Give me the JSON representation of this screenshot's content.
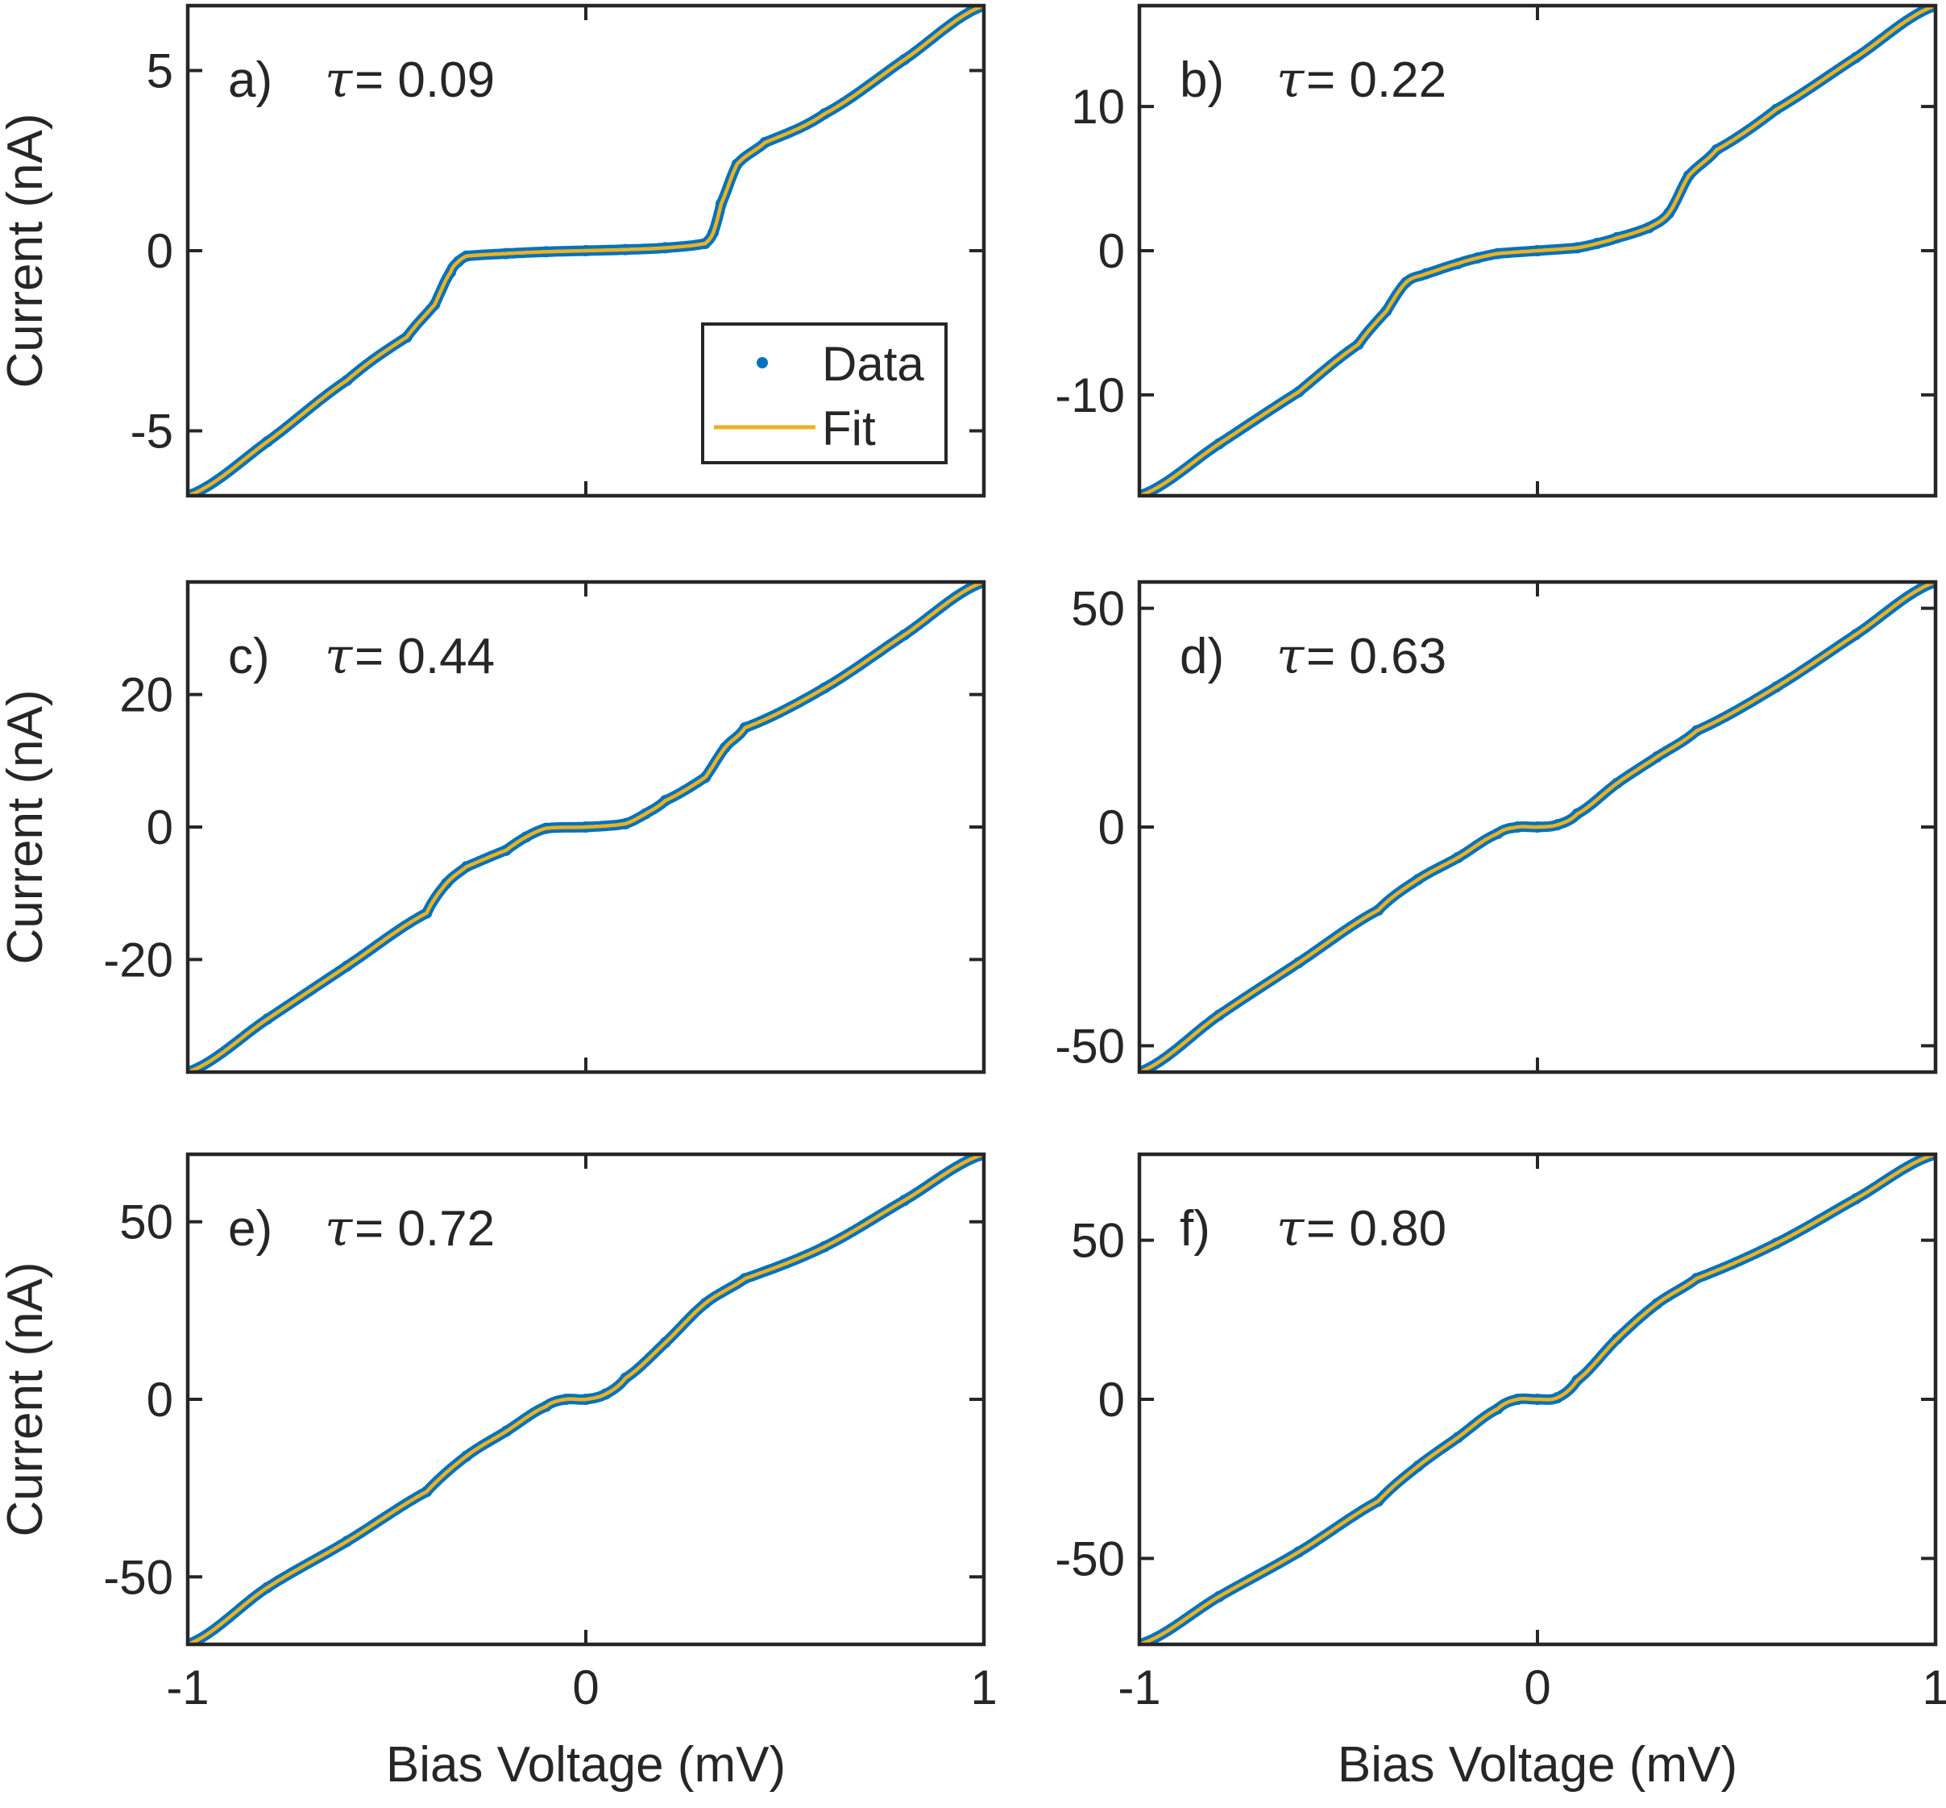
{
  "figure": {
    "legend_entries": [
      "Data",
      "Fit"
    ],
    "colors": {
      "data": "#0072BD",
      "fit": "#EDB120",
      "axes": "#262626"
    }
  },
  "chart_data": [
    {
      "type": "line",
      "panel": "a)",
      "tau_symbol": "τ",
      "tau_text": " = 0.09",
      "xlabel": "",
      "ylabel": "Current (nA)",
      "xlim": [
        -1,
        1
      ],
      "ylim": [
        -6.8,
        6.8
      ],
      "xticks": [
        -1,
        0,
        1
      ],
      "xtick_labels": [],
      "yticks": [
        -5,
        0,
        5
      ],
      "ytick_labels": [
        "-5",
        "0",
        "5"
      ],
      "legend": "bottom-right",
      "series": [
        {
          "name": "Data",
          "style": "dots",
          "x": [
            -1,
            -0.8,
            -0.6,
            -0.45,
            -0.38,
            -0.34,
            -0.32,
            -0.3,
            -0.2,
            -0.1,
            0,
            0.1,
            0.2,
            0.3,
            0.32,
            0.34,
            0.38,
            0.45,
            0.6,
            0.8,
            1
          ],
          "y": [
            -6.8,
            -5.3,
            -3.6,
            -2.4,
            -1.5,
            -0.6,
            -0.3,
            -0.15,
            -0.08,
            -0.03,
            0,
            0.03,
            0.08,
            0.2,
            0.5,
            1.3,
            2.4,
            3.0,
            3.8,
            5.3,
            6.8
          ]
        },
        {
          "name": "Fit",
          "style": "line",
          "x": [
            -1,
            -0.8,
            -0.6,
            -0.45,
            -0.38,
            -0.34,
            -0.32,
            -0.3,
            -0.2,
            -0.1,
            0,
            0.1,
            0.2,
            0.3,
            0.32,
            0.34,
            0.38,
            0.45,
            0.6,
            0.8,
            1
          ],
          "y": [
            -6.8,
            -5.3,
            -3.6,
            -2.4,
            -1.5,
            -0.6,
            -0.3,
            -0.15,
            -0.08,
            -0.03,
            0,
            0.03,
            0.08,
            0.2,
            0.5,
            1.3,
            2.4,
            3.0,
            3.8,
            5.3,
            6.8
          ]
        }
      ]
    },
    {
      "type": "line",
      "panel": "b)",
      "tau_symbol": "τ",
      "tau_text": " = 0.22",
      "xlabel": "",
      "ylabel": "",
      "xlim": [
        -1,
        1
      ],
      "ylim": [
        -17,
        17
      ],
      "xticks": [
        -1,
        0,
        1
      ],
      "xtick_labels": [],
      "yticks": [
        -10,
        0,
        10
      ],
      "ytick_labels": [
        "-10",
        "0",
        "10"
      ],
      "legend": "none",
      "series": [
        {
          "name": "Data",
          "style": "dots",
          "x": [
            -1,
            -0.8,
            -0.6,
            -0.45,
            -0.38,
            -0.33,
            -0.28,
            -0.2,
            -0.15,
            -0.1,
            0,
            0.1,
            0.15,
            0.2,
            0.28,
            0.33,
            0.38,
            0.45,
            0.6,
            0.8,
            1
          ],
          "y": [
            -17,
            -13.4,
            -9.8,
            -6.5,
            -4.2,
            -2.2,
            -1.6,
            -0.9,
            -0.5,
            -0.2,
            0,
            0.2,
            0.5,
            0.9,
            1.6,
            2.6,
            5.2,
            7.0,
            9.8,
            13.4,
            17
          ]
        },
        {
          "name": "Fit",
          "style": "line",
          "x": [
            -1,
            -0.8,
            -0.6,
            -0.45,
            -0.38,
            -0.33,
            -0.28,
            -0.2,
            -0.15,
            -0.1,
            0,
            0.1,
            0.15,
            0.2,
            0.28,
            0.33,
            0.38,
            0.45,
            0.6,
            0.8,
            1
          ],
          "y": [
            -17,
            -13.4,
            -9.8,
            -6.5,
            -4.2,
            -2.2,
            -1.6,
            -0.9,
            -0.5,
            -0.2,
            0,
            0.2,
            0.5,
            0.9,
            1.6,
            2.6,
            5.2,
            7.0,
            9.8,
            13.4,
            17
          ]
        }
      ]
    },
    {
      "type": "line",
      "panel": "c)",
      "tau_symbol": "τ",
      "tau_text": " = 0.44",
      "xlabel": "",
      "ylabel": "Current (nA)",
      "xlim": [
        -1,
        1
      ],
      "ylim": [
        -37,
        37
      ],
      "xticks": [
        -1,
        0,
        1
      ],
      "xtick_labels": [],
      "yticks": [
        -20,
        0,
        20
      ],
      "ytick_labels": [
        "-20",
        "0",
        "20"
      ],
      "legend": "none",
      "series": [
        {
          "name": "Data",
          "style": "dots",
          "x": [
            -1,
            -0.8,
            -0.6,
            -0.4,
            -0.35,
            -0.3,
            -0.2,
            -0.15,
            -0.1,
            0,
            0.1,
            0.15,
            0.2,
            0.3,
            0.35,
            0.4,
            0.6,
            0.8,
            1
          ],
          "y": [
            -37,
            -29,
            -21,
            -13,
            -8.5,
            -6,
            -3.5,
            -1.5,
            -0.2,
            0,
            0.5,
            2,
            4,
            7.5,
            12,
            15,
            21,
            29,
            37
          ]
        },
        {
          "name": "Fit",
          "style": "line",
          "x": [
            -1,
            -0.8,
            -0.6,
            -0.4,
            -0.35,
            -0.3,
            -0.2,
            -0.15,
            -0.1,
            0,
            0.1,
            0.15,
            0.2,
            0.3,
            0.35,
            0.4,
            0.6,
            0.8,
            1
          ],
          "y": [
            -37,
            -29,
            -21,
            -13,
            -8.5,
            -6,
            -3.5,
            -1.5,
            -0.2,
            0,
            0.5,
            2,
            4,
            7.5,
            12,
            15,
            21,
            29,
            37
          ]
        }
      ]
    },
    {
      "type": "line",
      "panel": "d)",
      "tau_symbol": "τ",
      "tau_text": " = 0.63",
      "xlabel": "",
      "ylabel": "",
      "xlim": [
        -1,
        1
      ],
      "ylim": [
        -56,
        56
      ],
      "xticks": [
        -1,
        0,
        1
      ],
      "xtick_labels": [],
      "yticks": [
        -50,
        0,
        50
      ],
      "ytick_labels": [
        "-50",
        "0",
        "50"
      ],
      "legend": "none",
      "series": [
        {
          "name": "Data",
          "style": "dots",
          "x": [
            -1,
            -0.8,
            -0.6,
            -0.4,
            -0.3,
            -0.2,
            -0.1,
            -0.05,
            0,
            0.05,
            0.1,
            0.2,
            0.3,
            0.4,
            0.6,
            0.8,
            1
          ],
          "y": [
            -56,
            -43,
            -31,
            -19,
            -12,
            -7,
            -1.5,
            0,
            0,
            0.5,
            3,
            10,
            16,
            22,
            32,
            44,
            56
          ]
        },
        {
          "name": "Fit",
          "style": "line",
          "x": [
            -1,
            -0.8,
            -0.6,
            -0.4,
            -0.3,
            -0.2,
            -0.1,
            -0.05,
            0,
            0.05,
            0.1,
            0.2,
            0.3,
            0.4,
            0.6,
            0.8,
            1
          ],
          "y": [
            -56,
            -43,
            -31,
            -19,
            -12,
            -7,
            -1.5,
            0,
            0,
            0.5,
            3,
            10,
            16,
            22,
            32,
            44,
            56
          ]
        }
      ]
    },
    {
      "type": "line",
      "panel": "e)",
      "tau_symbol": "τ",
      "tau_text": " = 0.72",
      "xlabel": "Bias Voltage (mV)",
      "ylabel": "Current (nA)",
      "xlim": [
        -1,
        1
      ],
      "ylim": [
        -69,
        69
      ],
      "xticks": [
        -1,
        0,
        1
      ],
      "xtick_labels": [
        "-1",
        "0",
        "1"
      ],
      "yticks": [
        -50,
        0,
        50
      ],
      "ytick_labels": [
        "-50",
        "0",
        "50"
      ],
      "legend": "none",
      "series": [
        {
          "name": "Data",
          "style": "dots",
          "x": [
            -1,
            -0.8,
            -0.6,
            -0.4,
            -0.3,
            -0.2,
            -0.1,
            -0.05,
            0,
            0.05,
            0.1,
            0.2,
            0.3,
            0.4,
            0.6,
            0.8,
            1
          ],
          "y": [
            -69,
            -53,
            -40,
            -26,
            -16,
            -9,
            -2,
            0,
            0,
            1.5,
            6,
            16,
            27,
            34,
            43,
            56,
            69
          ]
        },
        {
          "name": "Fit",
          "style": "line",
          "x": [
            -1,
            -0.8,
            -0.6,
            -0.4,
            -0.3,
            -0.2,
            -0.1,
            -0.05,
            0,
            0.05,
            0.1,
            0.2,
            0.3,
            0.4,
            0.6,
            0.8,
            1
          ],
          "y": [
            -69,
            -53,
            -40,
            -26,
            -16,
            -9,
            -2,
            0,
            0,
            1.5,
            6,
            16,
            27,
            34,
            43,
            56,
            69
          ]
        }
      ]
    },
    {
      "type": "line",
      "panel": "f)",
      "tau_symbol": "τ",
      "tau_text": " = 0.80",
      "xlabel": "Bias Voltage (mV)",
      "ylabel": "",
      "xlim": [
        -1,
        1
      ],
      "ylim": [
        -77,
        77
      ],
      "xticks": [
        -1,
        0,
        1
      ],
      "xtick_labels": [
        "-1",
        "0",
        "1"
      ],
      "yticks": [
        -50,
        0,
        50
      ],
      "ytick_labels": [
        "-50",
        "0",
        "50"
      ],
      "legend": "none",
      "series": [
        {
          "name": "Data",
          "style": "dots",
          "x": [
            -1,
            -0.8,
            -0.6,
            -0.4,
            -0.3,
            -0.2,
            -0.1,
            -0.05,
            0,
            0.05,
            0.1,
            0.2,
            0.3,
            0.4,
            0.6,
            0.8,
            1
          ],
          "y": [
            -77,
            -62,
            -48,
            -32,
            -21,
            -12,
            -3,
            0,
            0,
            0.5,
            6,
            19,
            30,
            38,
            49,
            63,
            77
          ]
        },
        {
          "name": "Fit",
          "style": "line",
          "x": [
            -1,
            -0.8,
            -0.6,
            -0.4,
            -0.3,
            -0.2,
            -0.1,
            -0.05,
            0,
            0.05,
            0.1,
            0.2,
            0.3,
            0.4,
            0.6,
            0.8,
            1
          ],
          "y": [
            -77,
            -62,
            -48,
            -32,
            -21,
            -12,
            -3,
            0,
            0,
            0.5,
            6,
            19,
            30,
            38,
            49,
            63,
            77
          ]
        }
      ]
    }
  ]
}
